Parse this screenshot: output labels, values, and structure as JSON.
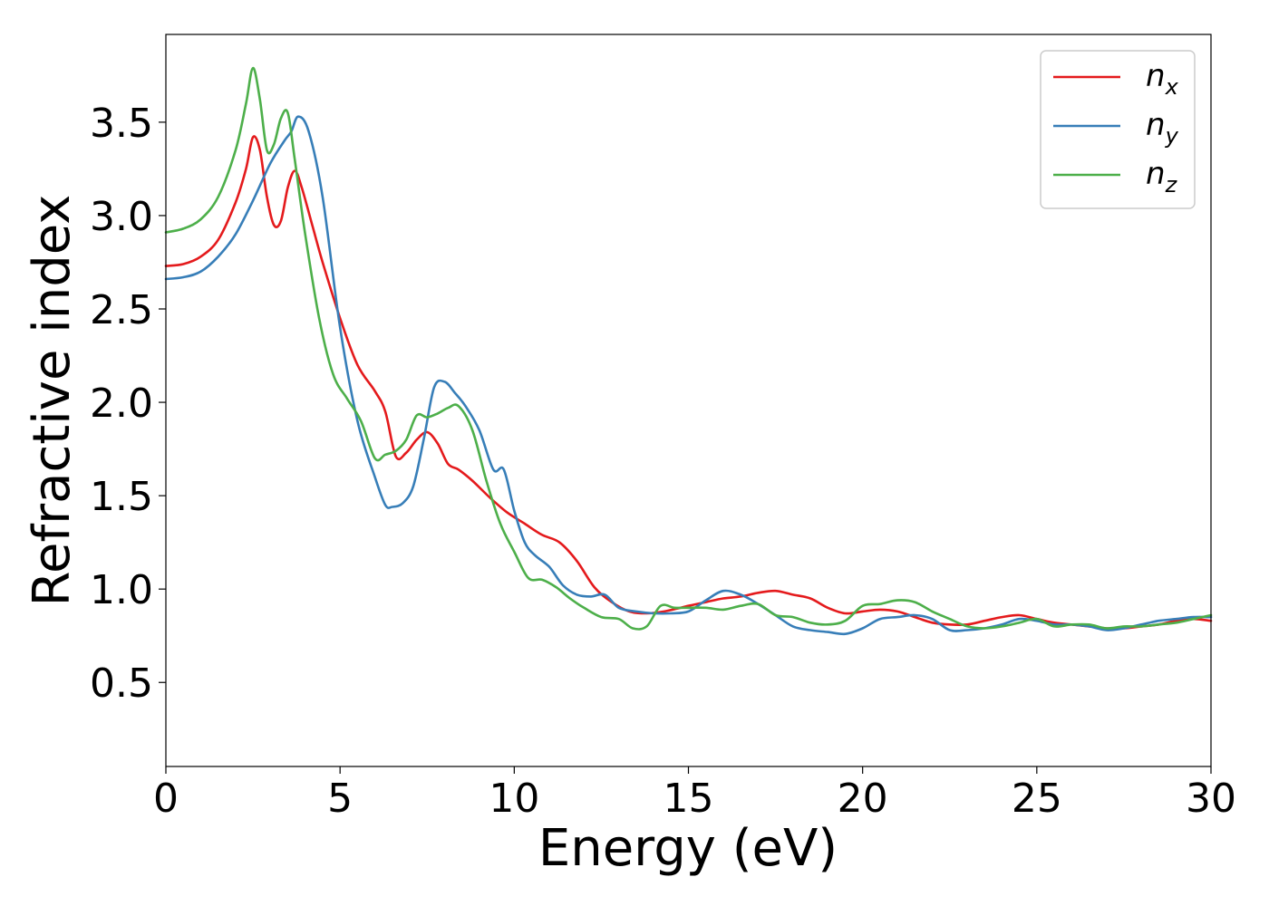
{
  "chart_data": {
    "type": "line",
    "xlabel": "Energy (eV)",
    "ylabel": "Refractive index",
    "xlim": [
      0,
      30
    ],
    "ylim": [
      0.05,
      3.97
    ],
    "xticks": [
      0,
      5,
      10,
      15,
      20,
      25,
      30
    ],
    "xtick_labels": [
      "0",
      "5",
      "10",
      "15",
      "20",
      "25",
      "30"
    ],
    "yticks": [
      0.5,
      1.0,
      1.5,
      2.0,
      2.5,
      3.0,
      3.5
    ],
    "ytick_labels": [
      "0.5",
      "1.0",
      "1.5",
      "2.0",
      "2.5",
      "3.0",
      "3.5"
    ],
    "grid": false,
    "legend_position": "top-right",
    "series": [
      {
        "name": "n",
        "subscript": "x",
        "color": "#e41a1c",
        "x": [
          0,
          0.5,
          1,
          1.5,
          2,
          2.3,
          2.5,
          2.7,
          2.9,
          3.1,
          3.3,
          3.5,
          3.7,
          3.9,
          4.2,
          4.5,
          5,
          5.5,
          6,
          6.3,
          6.6,
          6.9,
          7.2,
          7.5,
          7.8,
          8.1,
          8.4,
          8.8,
          9.3,
          9.8,
          10.3,
          10.8,
          11.3,
          11.8,
          12.3,
          12.8,
          13.3,
          13.8,
          14.3,
          15,
          15.5,
          16,
          16.5,
          17,
          17.5,
          18,
          18.5,
          19,
          19.5,
          20,
          20.5,
          21,
          21.5,
          22,
          22.5,
          23,
          23.5,
          24,
          24.5,
          25,
          25.5,
          26,
          26.5,
          27,
          27.5,
          28,
          28.5,
          29,
          29.5,
          30
        ],
        "y": [
          2.73,
          2.74,
          2.78,
          2.87,
          3.07,
          3.25,
          3.42,
          3.35,
          3.1,
          2.95,
          2.97,
          3.15,
          3.24,
          3.15,
          2.95,
          2.75,
          2.45,
          2.2,
          2.06,
          1.95,
          1.71,
          1.73,
          1.8,
          1.84,
          1.78,
          1.67,
          1.64,
          1.58,
          1.49,
          1.41,
          1.35,
          1.29,
          1.25,
          1.15,
          1.01,
          0.93,
          0.88,
          0.87,
          0.88,
          0.91,
          0.93,
          0.95,
          0.96,
          0.98,
          0.99,
          0.97,
          0.95,
          0.9,
          0.87,
          0.88,
          0.89,
          0.88,
          0.85,
          0.82,
          0.81,
          0.81,
          0.83,
          0.85,
          0.86,
          0.84,
          0.82,
          0.81,
          0.8,
          0.79,
          0.79,
          0.8,
          0.81,
          0.83,
          0.84,
          0.83
        ]
      },
      {
        "name": "n",
        "subscript": "y",
        "color": "#377eb8",
        "x": [
          0,
          0.5,
          1,
          1.5,
          2,
          2.5,
          3,
          3.4,
          3.6,
          3.8,
          4.1,
          4.5,
          5,
          5.5,
          6,
          6.3,
          6.5,
          6.8,
          7.1,
          7.4,
          7.7,
          8,
          8.3,
          8.6,
          9,
          9.4,
          9.7,
          10,
          10.3,
          10.6,
          11,
          11.4,
          11.8,
          12.2,
          12.6,
          13,
          13.5,
          14,
          14.5,
          15,
          15.5,
          16,
          16.5,
          17,
          17.5,
          18,
          18.5,
          19,
          19.5,
          20,
          20.5,
          21,
          21.5,
          22,
          22.5,
          23,
          23.5,
          24,
          24.5,
          25,
          25.5,
          26,
          26.5,
          27,
          27.5,
          28,
          28.5,
          29,
          29.5,
          30
        ],
        "y": [
          2.66,
          2.67,
          2.7,
          2.78,
          2.9,
          3.08,
          3.28,
          3.4,
          3.45,
          3.53,
          3.45,
          3.1,
          2.4,
          1.9,
          1.6,
          1.45,
          1.44,
          1.46,
          1.55,
          1.8,
          2.08,
          2.11,
          2.05,
          1.98,
          1.85,
          1.64,
          1.64,
          1.42,
          1.25,
          1.18,
          1.12,
          1.02,
          0.97,
          0.96,
          0.97,
          0.9,
          0.88,
          0.87,
          0.87,
          0.88,
          0.94,
          0.99,
          0.97,
          0.92,
          0.86,
          0.8,
          0.78,
          0.77,
          0.76,
          0.79,
          0.84,
          0.85,
          0.86,
          0.84,
          0.78,
          0.78,
          0.79,
          0.81,
          0.84,
          0.83,
          0.81,
          0.81,
          0.8,
          0.78,
          0.79,
          0.81,
          0.83,
          0.84,
          0.85,
          0.85
        ]
      },
      {
        "name": "n",
        "subscript": "z",
        "color": "#4daf4a",
        "x": [
          0,
          0.5,
          1,
          1.5,
          2,
          2.3,
          2.5,
          2.7,
          2.9,
          3.1,
          3.3,
          3.5,
          3.7,
          4,
          4.4,
          4.8,
          5.2,
          5.6,
          6,
          6.3,
          6.6,
          6.9,
          7.2,
          7.5,
          7.8,
          8.1,
          8.4,
          8.8,
          9.2,
          9.6,
          10,
          10.4,
          10.8,
          11.2,
          11.6,
          12,
          12.5,
          13,
          13.4,
          13.8,
          14.2,
          14.6,
          15,
          15.5,
          16,
          16.5,
          17,
          17.5,
          18,
          18.5,
          19,
          19.5,
          20,
          20.5,
          21,
          21.5,
          22,
          22.5,
          23,
          23.5,
          24,
          24.5,
          25,
          25.5,
          26,
          26.5,
          27,
          27.5,
          28,
          28.5,
          29,
          29.5,
          30
        ],
        "y": [
          2.91,
          2.93,
          2.98,
          3.1,
          3.35,
          3.6,
          3.79,
          3.62,
          3.35,
          3.38,
          3.52,
          3.55,
          3.3,
          2.9,
          2.45,
          2.15,
          2.02,
          1.9,
          1.7,
          1.72,
          1.74,
          1.8,
          1.93,
          1.92,
          1.94,
          1.97,
          1.98,
          1.85,
          1.58,
          1.35,
          1.2,
          1.06,
          1.05,
          1.01,
          0.95,
          0.9,
          0.85,
          0.84,
          0.79,
          0.8,
          0.91,
          0.9,
          0.9,
          0.9,
          0.89,
          0.91,
          0.92,
          0.86,
          0.85,
          0.82,
          0.81,
          0.83,
          0.91,
          0.92,
          0.94,
          0.93,
          0.88,
          0.84,
          0.8,
          0.79,
          0.8,
          0.82,
          0.84,
          0.8,
          0.81,
          0.81,
          0.79,
          0.8,
          0.8,
          0.81,
          0.82,
          0.84,
          0.86
        ]
      }
    ]
  }
}
